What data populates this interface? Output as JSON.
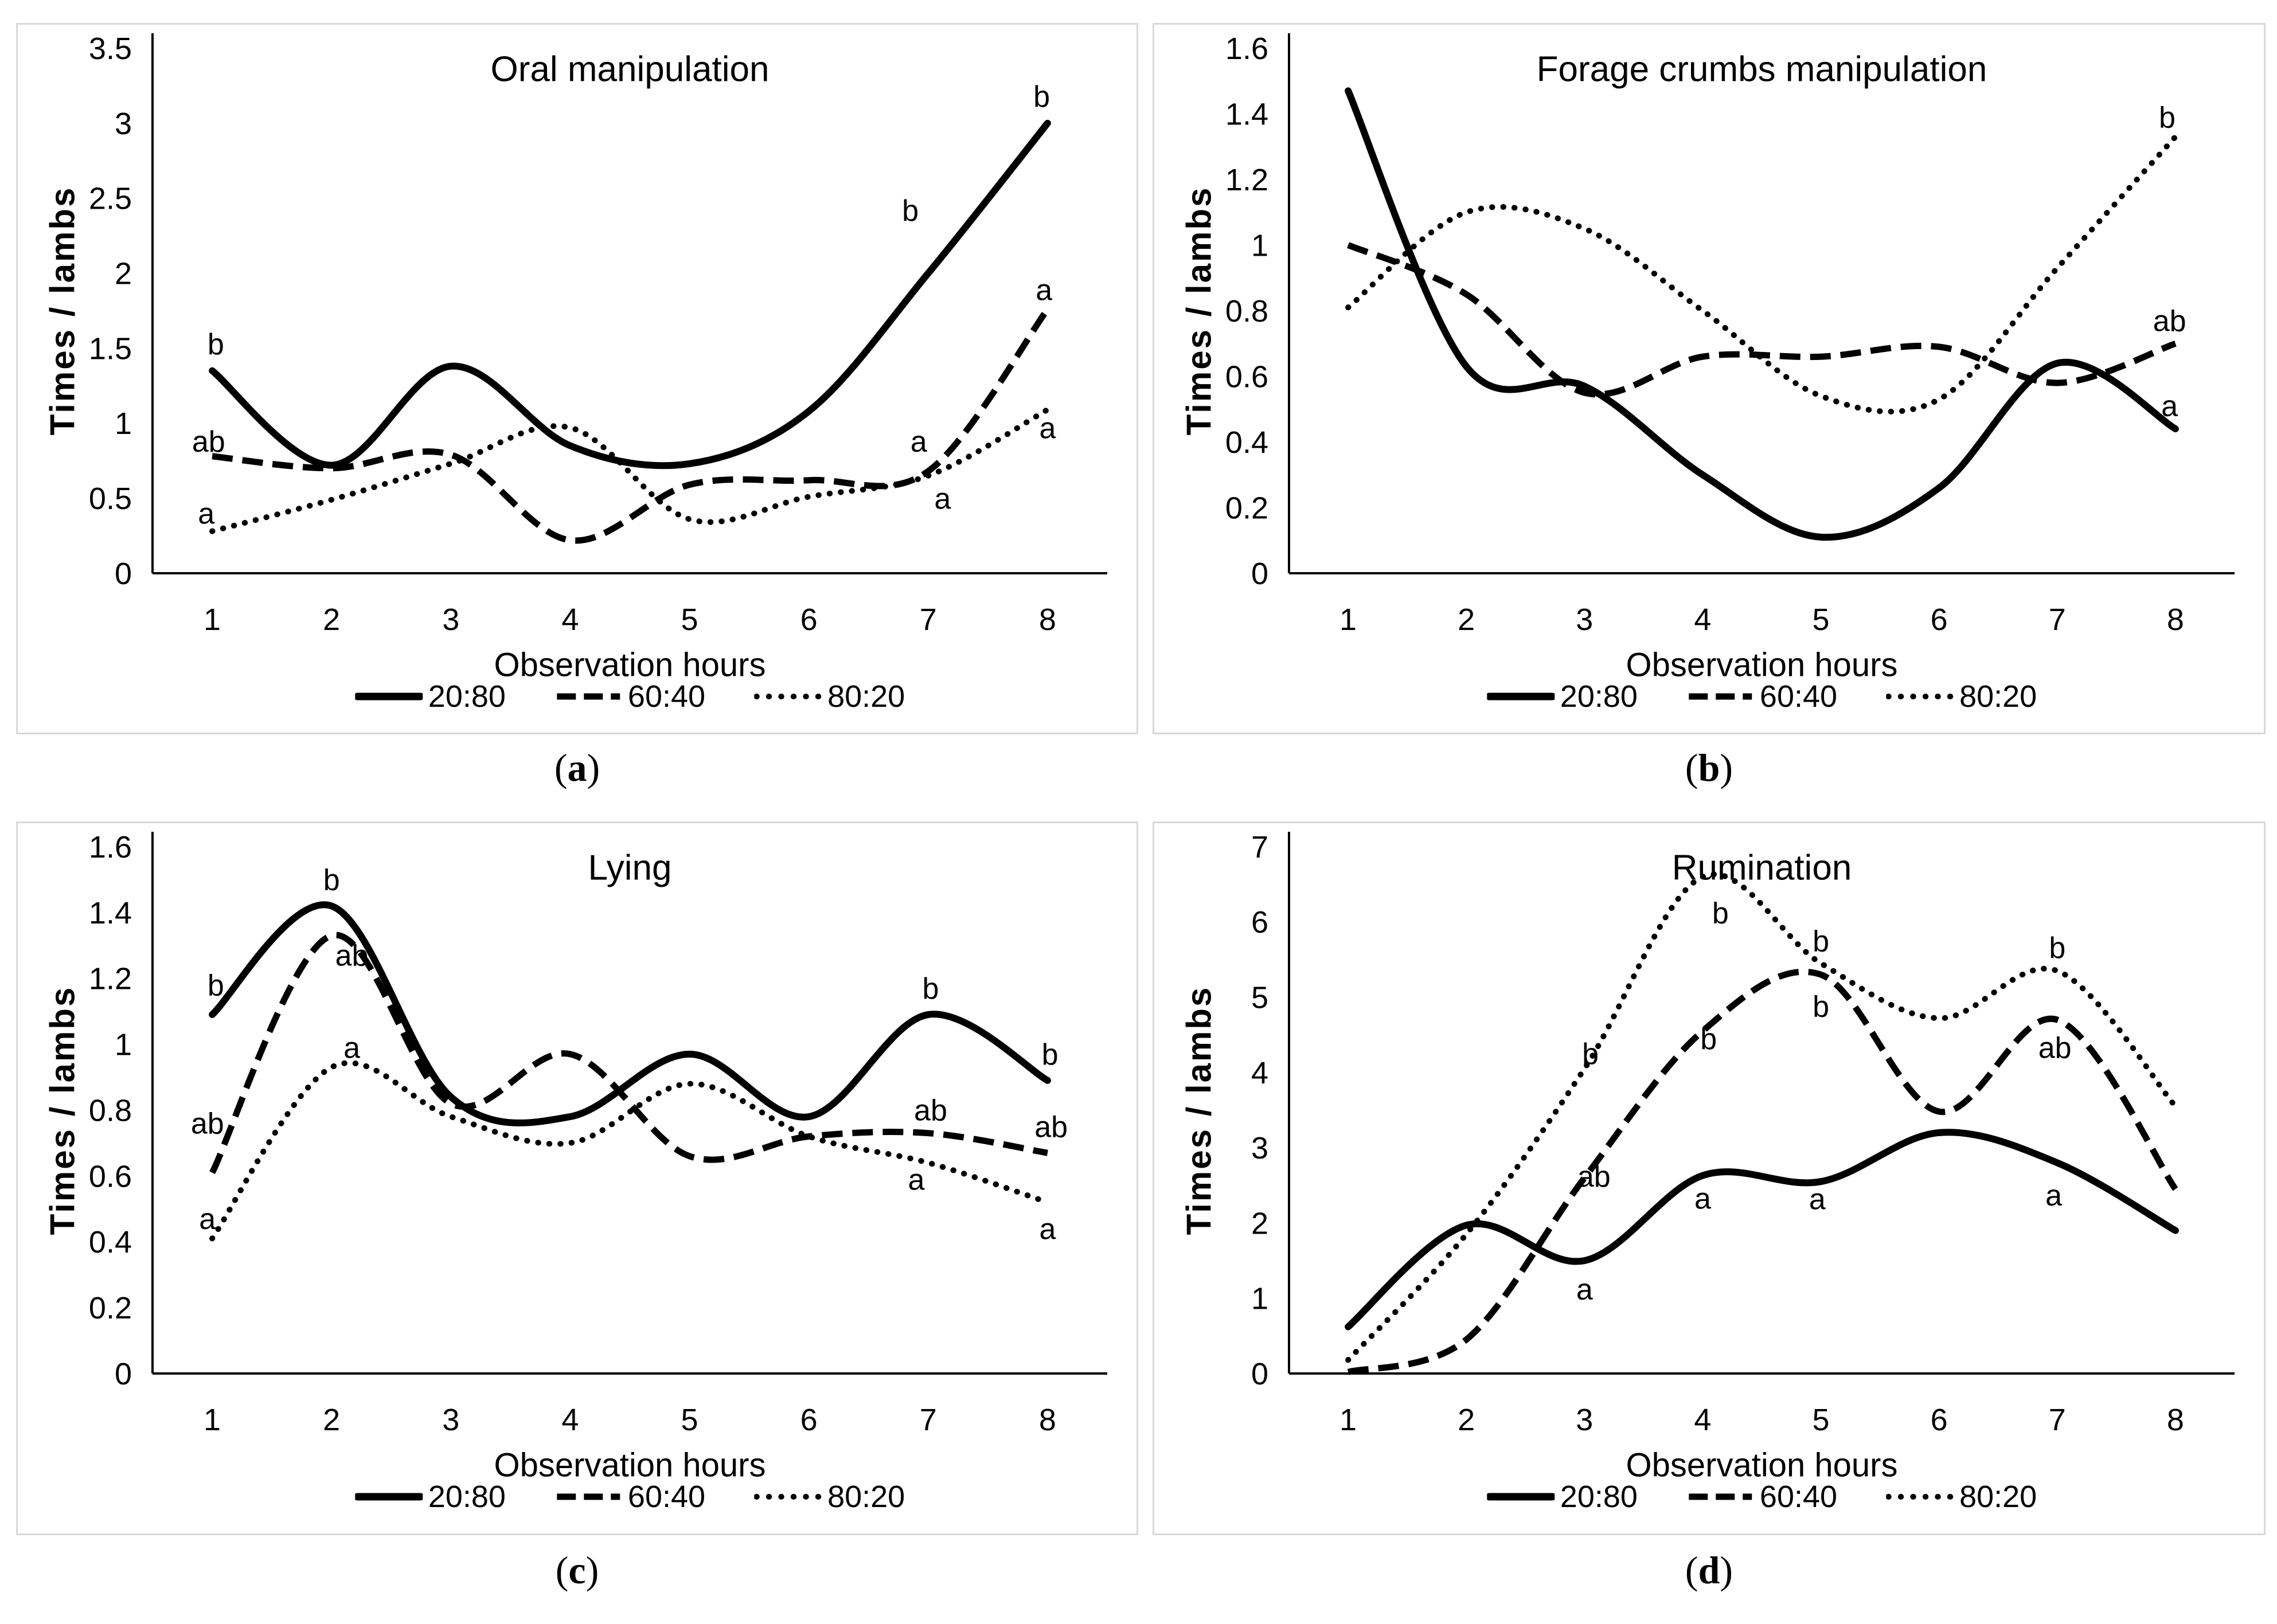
{
  "page": {
    "background": "#ffffff",
    "panel_border_color": "#d9d9d9",
    "line_color": "#000000",
    "text_color": "#000000"
  },
  "chart_data": [
    {
      "type": "line",
      "title": "Oral manipulation",
      "xlabel": "Observation hours",
      "ylabel": "Times / lambs",
      "caption": {
        "open": "(",
        "letter": "a",
        "close": ")"
      },
      "x": [
        1,
        2,
        3,
        4,
        5,
        6,
        7,
        8
      ],
      "xtick_labels": [
        "1",
        "2",
        "3",
        "4",
        "5",
        "6",
        "7",
        "8"
      ],
      "ylim": [
        0,
        3.5
      ],
      "ytick_labels": [
        "0",
        "0.5",
        "1",
        "1.5",
        "2",
        "2.5",
        "3",
        "3.5"
      ],
      "grid": false,
      "legend_position": "bottom",
      "series": [
        {
          "name": "20:80",
          "style": "solid",
          "values": [
            1.35,
            0.72,
            1.38,
            0.85,
            0.73,
            1.08,
            2.0,
            3.0
          ]
        },
        {
          "name": "60:40",
          "style": "dashed",
          "values": [
            0.78,
            0.7,
            0.79,
            0.22,
            0.59,
            0.62,
            0.68,
            1.76
          ]
        },
        {
          "name": "80:20",
          "style": "dotted",
          "values": [
            0.28,
            0.49,
            0.73,
            0.97,
            0.36,
            0.51,
            0.65,
            1.09
          ]
        }
      ],
      "annotations": [
        {
          "x": 1.03,
          "y": 1.53,
          "text": "b"
        },
        {
          "x": 0.97,
          "y": 0.88,
          "text": "ab"
        },
        {
          "x": 0.95,
          "y": 0.4,
          "text": "a"
        },
        {
          "x": 6.85,
          "y": 2.42,
          "text": "b"
        },
        {
          "x": 6.92,
          "y": 0.88,
          "text": "a"
        },
        {
          "x": 7.12,
          "y": 0.5,
          "text": "a"
        },
        {
          "x": 7.95,
          "y": 3.18,
          "text": "b"
        },
        {
          "x": 7.97,
          "y": 1.89,
          "text": "a"
        },
        {
          "x": 8.0,
          "y": 0.97,
          "text": "a"
        }
      ]
    },
    {
      "type": "line",
      "title": "Forage crumbs manipulation",
      "xlabel": "Observation hours",
      "ylabel": "Times / lambs",
      "caption": {
        "open": "(",
        "letter": "b",
        "close": ")"
      },
      "x": [
        1,
        2,
        3,
        4,
        5,
        6,
        7,
        8
      ],
      "xtick_labels": [
        "1",
        "2",
        "3",
        "4",
        "5",
        "6",
        "7",
        "8"
      ],
      "ylim": [
        0,
        1.6
      ],
      "ytick_labels": [
        "0",
        "0.2",
        "0.4",
        "0.6",
        "0.8",
        "1",
        "1.2",
        "1.4",
        "1.6"
      ],
      "grid": false,
      "legend_position": "bottom",
      "series": [
        {
          "name": "20:80",
          "style": "solid",
          "values": [
            1.47,
            0.63,
            0.57,
            0.3,
            0.11,
            0.26,
            0.64,
            0.44
          ]
        },
        {
          "name": "60:40",
          "style": "dashed",
          "values": [
            1.0,
            0.85,
            0.55,
            0.66,
            0.66,
            0.69,
            0.58,
            0.7
          ]
        },
        {
          "name": "80:20",
          "style": "dotted",
          "values": [
            0.81,
            1.1,
            1.05,
            0.8,
            0.54,
            0.53,
            0.93,
            1.33
          ]
        }
      ],
      "annotations": [
        {
          "x": 7.93,
          "y": 1.39,
          "text": "b"
        },
        {
          "x": 7.95,
          "y": 0.77,
          "text": "ab"
        },
        {
          "x": 7.95,
          "y": 0.51,
          "text": "a"
        }
      ]
    },
    {
      "type": "line",
      "title": "Lying",
      "xlabel": "Observation hours",
      "ylabel": "Times / lambs",
      "caption": {
        "open": "(",
        "letter": "c",
        "close": ")"
      },
      "x": [
        1,
        2,
        3,
        4,
        5,
        6,
        7,
        8
      ],
      "xtick_labels": [
        "1",
        "2",
        "3",
        "4",
        "5",
        "6",
        "7",
        "8"
      ],
      "ylim": [
        0,
        1.6
      ],
      "ytick_labels": [
        "0",
        "0.2",
        "0.4",
        "0.6",
        "0.8",
        "1",
        "1.2",
        "1.4",
        "1.6"
      ],
      "grid": false,
      "legend_position": "bottom",
      "series": [
        {
          "name": "20:80",
          "style": "solid",
          "values": [
            1.09,
            1.42,
            0.84,
            0.78,
            0.97,
            0.78,
            1.09,
            0.89
          ]
        },
        {
          "name": "60:40",
          "style": "dashed",
          "values": [
            0.61,
            1.33,
            0.82,
            0.97,
            0.66,
            0.72,
            0.73,
            0.67
          ]
        },
        {
          "name": "80:20",
          "style": "dotted",
          "values": [
            0.41,
            0.93,
            0.78,
            0.7,
            0.88,
            0.72,
            0.64,
            0.52
          ]
        }
      ],
      "annotations": [
        {
          "x": 1.03,
          "y": 1.18,
          "text": "b"
        },
        {
          "x": 0.96,
          "y": 0.76,
          "text": "ab"
        },
        {
          "x": 0.96,
          "y": 0.47,
          "text": "a"
        },
        {
          "x": 2.0,
          "y": 1.5,
          "text": "b"
        },
        {
          "x": 2.17,
          "y": 1.27,
          "text": "ab"
        },
        {
          "x": 2.17,
          "y": 0.99,
          "text": "a"
        },
        {
          "x": 7.02,
          "y": 1.17,
          "text": "b"
        },
        {
          "x": 7.02,
          "y": 0.8,
          "text": "ab"
        },
        {
          "x": 6.9,
          "y": 0.59,
          "text": "a"
        },
        {
          "x": 8.02,
          "y": 0.97,
          "text": "b"
        },
        {
          "x": 8.03,
          "y": 0.75,
          "text": "ab"
        },
        {
          "x": 8.0,
          "y": 0.44,
          "text": "a"
        }
      ]
    },
    {
      "type": "line",
      "title": "Rumination",
      "xlabel": "Observation hours",
      "ylabel": "Times / lambs",
      "caption": {
        "open": "(",
        "letter": "d",
        "close": ")"
      },
      "x": [
        1,
        2,
        3,
        4,
        5,
        6,
        7,
        8
      ],
      "xtick_labels": [
        "1",
        "2",
        "3",
        "4",
        "5",
        "6",
        "7",
        "8"
      ],
      "ylim": [
        0,
        7
      ],
      "ytick_labels": [
        "0",
        "1",
        "2",
        "3",
        "4",
        "5",
        "6",
        "7"
      ],
      "grid": false,
      "legend_position": "bottom",
      "series": [
        {
          "name": "20:80",
          "style": "solid",
          "values": [
            0.62,
            1.97,
            1.5,
            2.63,
            2.55,
            3.2,
            2.8,
            1.9
          ]
        },
        {
          "name": "60:40",
          "style": "dashed",
          "values": [
            0.02,
            0.45,
            2.6,
            4.55,
            5.3,
            3.48,
            4.7,
            2.45
          ]
        },
        {
          "name": "80:20",
          "style": "dotted",
          "values": [
            0.18,
            1.85,
            4.05,
            6.6,
            5.45,
            4.72,
            5.35,
            3.55
          ]
        }
      ],
      "annotations": [
        {
          "x": 3.05,
          "y": 4.25,
          "text": "b"
        },
        {
          "x": 3.08,
          "y": 2.62,
          "text": "ab"
        },
        {
          "x": 3.0,
          "y": 1.12,
          "text": "a"
        },
        {
          "x": 4.15,
          "y": 6.12,
          "text": "b"
        },
        {
          "x": 4.05,
          "y": 4.45,
          "text": "b"
        },
        {
          "x": 4.0,
          "y": 2.33,
          "text": "a"
        },
        {
          "x": 5.0,
          "y": 5.75,
          "text": "b"
        },
        {
          "x": 5.0,
          "y": 4.88,
          "text": "b"
        },
        {
          "x": 4.97,
          "y": 2.32,
          "text": "a"
        },
        {
          "x": 7.0,
          "y": 5.66,
          "text": "b"
        },
        {
          "x": 6.98,
          "y": 4.33,
          "text": "ab"
        },
        {
          "x": 6.97,
          "y": 2.37,
          "text": "a"
        }
      ]
    }
  ]
}
